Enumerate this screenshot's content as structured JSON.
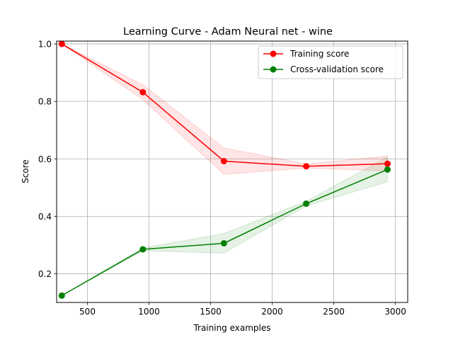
{
  "chart_data": {
    "type": "line",
    "title": "Learning Curve - Adam Neural net - wine",
    "xlabel": "Training examples",
    "ylabel": "Score",
    "xlim": [
      250,
      3100
    ],
    "ylim": [
      0.1,
      1.01
    ],
    "xticks": [
      500,
      1000,
      1500,
      2000,
      2500,
      3000
    ],
    "yticks": [
      0.2,
      0.4,
      0.6,
      0.8,
      1.0
    ],
    "xtick_labels": [
      "500",
      "1000",
      "1500",
      "2000",
      "2500",
      "3000"
    ],
    "ytick_labels": [
      "0.2",
      "0.4",
      "0.6",
      "0.8",
      "1.0"
    ],
    "grid": true,
    "legend_position": "top-right",
    "x": [
      292,
      950,
      1608,
      2276,
      2936
    ],
    "series": [
      {
        "name": "Training score",
        "color": "#ff0000",
        "band_color": "#ff0000",
        "values": [
          1.0,
          0.832,
          0.592,
          0.574,
          0.583
        ],
        "band_lower": [
          1.0,
          0.806,
          0.546,
          0.568,
          0.558
        ],
        "band_upper": [
          1.0,
          0.858,
          0.638,
          0.582,
          0.61
        ]
      },
      {
        "name": "Cross-validation score",
        "color": "#008000",
        "band_color": "#008000",
        "values": [
          0.124,
          0.285,
          0.306,
          0.444,
          0.563
        ],
        "band_lower": [
          0.124,
          0.28,
          0.272,
          0.436,
          0.52
        ],
        "band_upper": [
          0.124,
          0.29,
          0.34,
          0.452,
          0.606
        ]
      }
    ]
  }
}
